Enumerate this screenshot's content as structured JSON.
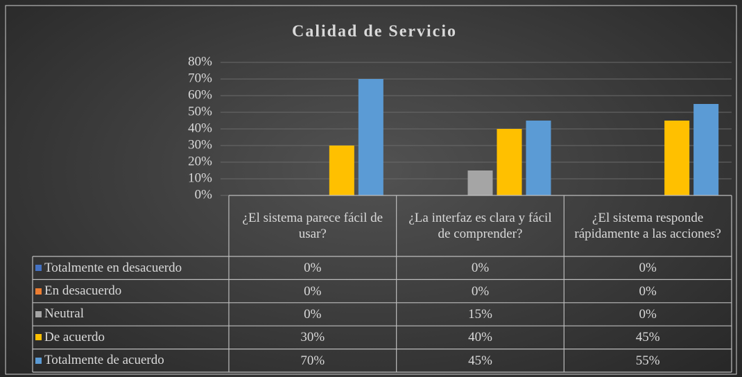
{
  "chart_data": {
    "type": "bar",
    "title": "Calidad de Servicio",
    "categories": [
      "¿El sistema parece fácil de usar?",
      "¿La interfaz es clara y fácil de comprender?",
      "¿El sistema responde rápidamente a las acciones?"
    ],
    "series": [
      {
        "name": "Totalmente en desacuerdo",
        "color": "#4472c4",
        "values": [
          0,
          0,
          0
        ],
        "value_labels": [
          "0%",
          "0%",
          "0%"
        ]
      },
      {
        "name": "En desacuerdo",
        "color": "#ed7d31",
        "values": [
          0,
          0,
          0
        ],
        "value_labels": [
          "0%",
          "0%",
          "0%"
        ]
      },
      {
        "name": "Neutral",
        "color": "#a5a5a5",
        "values": [
          0,
          15,
          0
        ],
        "value_labels": [
          "0%",
          "15%",
          "0%"
        ]
      },
      {
        "name": "De acuerdo",
        "color": "#ffc000",
        "values": [
          30,
          40,
          45
        ],
        "value_labels": [
          "30%",
          "40%",
          "45%"
        ]
      },
      {
        "name": "Totalmente de acuerdo",
        "color": "#5b9bd5",
        "values": [
          70,
          45,
          55
        ],
        "value_labels": [
          "70%",
          "45%",
          "55%"
        ]
      }
    ],
    "ylim": [
      0,
      80
    ],
    "yticks": [
      {
        "value": 0,
        "label": "0%"
      },
      {
        "value": 10,
        "label": "10%"
      },
      {
        "value": 20,
        "label": "20%"
      },
      {
        "value": 30,
        "label": "30%"
      },
      {
        "value": 40,
        "label": "40%"
      },
      {
        "value": 50,
        "label": "50%"
      },
      {
        "value": 60,
        "label": "60%"
      },
      {
        "value": 70,
        "label": "70%"
      },
      {
        "value": 80,
        "label": "80%"
      }
    ],
    "grid": true
  }
}
